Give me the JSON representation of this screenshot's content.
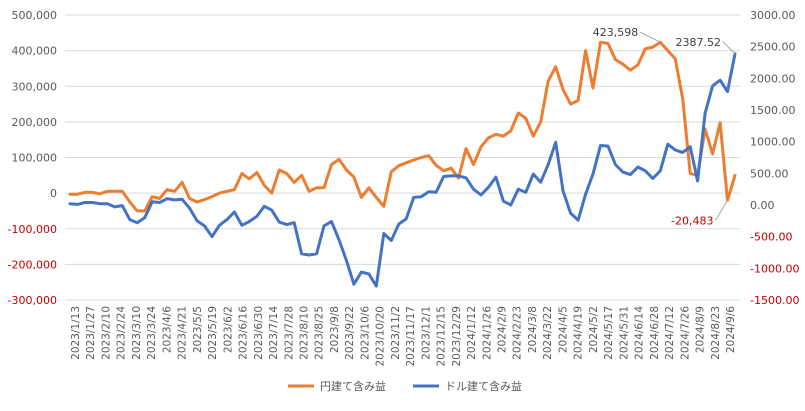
{
  "chart_data": {
    "type": "line",
    "title": "",
    "colors": {
      "jpy": "#ED7D31",
      "usd": "#4472C4",
      "negative_tick": "#C00000",
      "grid": "#D9D9D9",
      "axis_text": "#595959"
    },
    "y_left": {
      "ylim": [
        -300000,
        500000
      ],
      "ticks": [
        {
          "value": 500000,
          "label": "500,000",
          "negative": false
        },
        {
          "value": 400000,
          "label": "400,000",
          "negative": false
        },
        {
          "value": 300000,
          "label": "300,000",
          "negative": false
        },
        {
          "value": 200000,
          "label": "200,000",
          "negative": false
        },
        {
          "value": 100000,
          "label": "100,000",
          "negative": false
        },
        {
          "value": 0,
          "label": "0",
          "negative": false
        },
        {
          "value": -100000,
          "label": "-100,000",
          "negative": true
        },
        {
          "value": -200000,
          "label": "-200,000",
          "negative": true
        },
        {
          "value": -300000,
          "label": "-300,000",
          "negative": true
        }
      ]
    },
    "y_right": {
      "ylim": [
        -1500,
        3000
      ],
      "ticks": [
        {
          "value": 3000,
          "label": "3000.00",
          "negative": false
        },
        {
          "value": 2500,
          "label": "2500.00",
          "negative": false
        },
        {
          "value": 2000,
          "label": "2000.00",
          "negative": false
        },
        {
          "value": 1500,
          "label": "1500.00",
          "negative": false
        },
        {
          "value": 1000,
          "label": "1000.00",
          "negative": false
        },
        {
          "value": 500,
          "label": "500.00",
          "negative": false
        },
        {
          "value": 0,
          "label": "0.00",
          "negative": false
        },
        {
          "value": -500,
          "label": "-500.00",
          "negative": true
        },
        {
          "value": -1000,
          "label": "-1000.00",
          "negative": true
        },
        {
          "value": -1500,
          "label": "-1500.00",
          "negative": true
        }
      ]
    },
    "x_tick_labels": [
      "2023/1/13",
      "2023/1/27",
      "2023/2/10",
      "2023/2/24",
      "2023/3/10",
      "2023/3/24",
      "2023/4/6",
      "2023/4/21",
      "2023/5/5",
      "2023/5/19",
      "2023/6/2",
      "2023/6/16",
      "2023/6/30",
      "2023/7/14",
      "2023/7/28",
      "2023/8/10",
      "2023/8/25",
      "2023/9/8",
      "2023/9/22",
      "2023/10/6",
      "2023/10/20",
      "2023/11/2",
      "2023/11/17",
      "2023/12/1",
      "2023/12/15",
      "2023/12/29",
      "2024/1/12",
      "2024/1/26",
      "2024/2/9",
      "2024/2/23",
      "2024/3/8",
      "2024/3/22",
      "2024/4/5",
      "2024/4/19",
      "2024/5/2",
      "2024/5/17",
      "2024/5/31",
      "2024/6/14",
      "2024/6/28",
      "2024/7/12",
      "2024/7/26",
      "2024/8/9",
      "2024/8/23",
      "2024/9/6"
    ],
    "series": [
      {
        "name": "円建て含み益",
        "axis": "left",
        "color": "#ED7D31",
        "values": [
          -3000,
          -3000,
          2000,
          2000,
          -2000,
          5000,
          5000,
          5000,
          -25000,
          -50000,
          -50000,
          -10000,
          -15000,
          10000,
          5000,
          30000,
          -15000,
          -25000,
          -18000,
          -10000,
          0,
          5000,
          10000,
          55000,
          40000,
          58000,
          22000,
          0,
          65000,
          55000,
          30000,
          50000,
          5000,
          15000,
          15000,
          80000,
          95000,
          65000,
          45000,
          -12000,
          15000,
          -12000,
          -37000,
          60000,
          77000,
          85000,
          93000,
          100000,
          105000,
          78000,
          63000,
          70000,
          42000,
          125000,
          80000,
          130000,
          155000,
          165000,
          160000,
          175000,
          225000,
          210000,
          160000,
          200000,
          315000,
          355000,
          290000,
          250000,
          260000,
          400000,
          295000,
          423598,
          420000,
          375000,
          362000,
          345000,
          360000,
          405000,
          410000,
          423598,
          400000,
          377000,
          265000,
          55000,
          50000,
          180000,
          110000,
          198000,
          -20483,
          50000
        ]
      },
      {
        "name": "ドル建て含み益",
        "axis": "right",
        "color": "#4472C4",
        "values": [
          20,
          10,
          40,
          40,
          20,
          20,
          -30,
          -10,
          -230,
          -280,
          -200,
          50,
          40,
          100,
          80,
          90,
          -50,
          -250,
          -330,
          -500,
          -320,
          -230,
          -110,
          -320,
          -260,
          -180,
          -20,
          -80,
          -270,
          -310,
          -280,
          -770,
          -790,
          -770,
          -330,
          -260,
          -550,
          -880,
          -1250,
          -1060,
          -1090,
          -1280,
          -450,
          -560,
          -300,
          -220,
          120,
          130,
          210,
          200,
          450,
          460,
          460,
          430,
          250,
          160,
          280,
          440,
          60,
          0,
          250,
          200,
          490,
          360,
          640,
          990,
          220,
          -130,
          -240,
          170,
          490,
          940,
          930,
          640,
          520,
          480,
          600,
          540,
          420,
          540,
          960,
          870,
          830,
          920,
          380,
          1450,
          1880,
          1970,
          1790,
          2387.52
        ]
      }
    ],
    "annotations": [
      {
        "text": "423,598",
        "series": "円建て含み益",
        "index": 79,
        "color": "#404040"
      },
      {
        "text": "2387.52",
        "series": "ドル建て含み益",
        "index": 89,
        "color": "#404040"
      },
      {
        "text": "-20,483",
        "series": "円建て含み益",
        "index": 88,
        "color": "#C00000"
      }
    ],
    "legend": {
      "placement": "bottom-center",
      "items": [
        "円建て含み益",
        "ドル建て含み益"
      ]
    },
    "grid": true
  }
}
